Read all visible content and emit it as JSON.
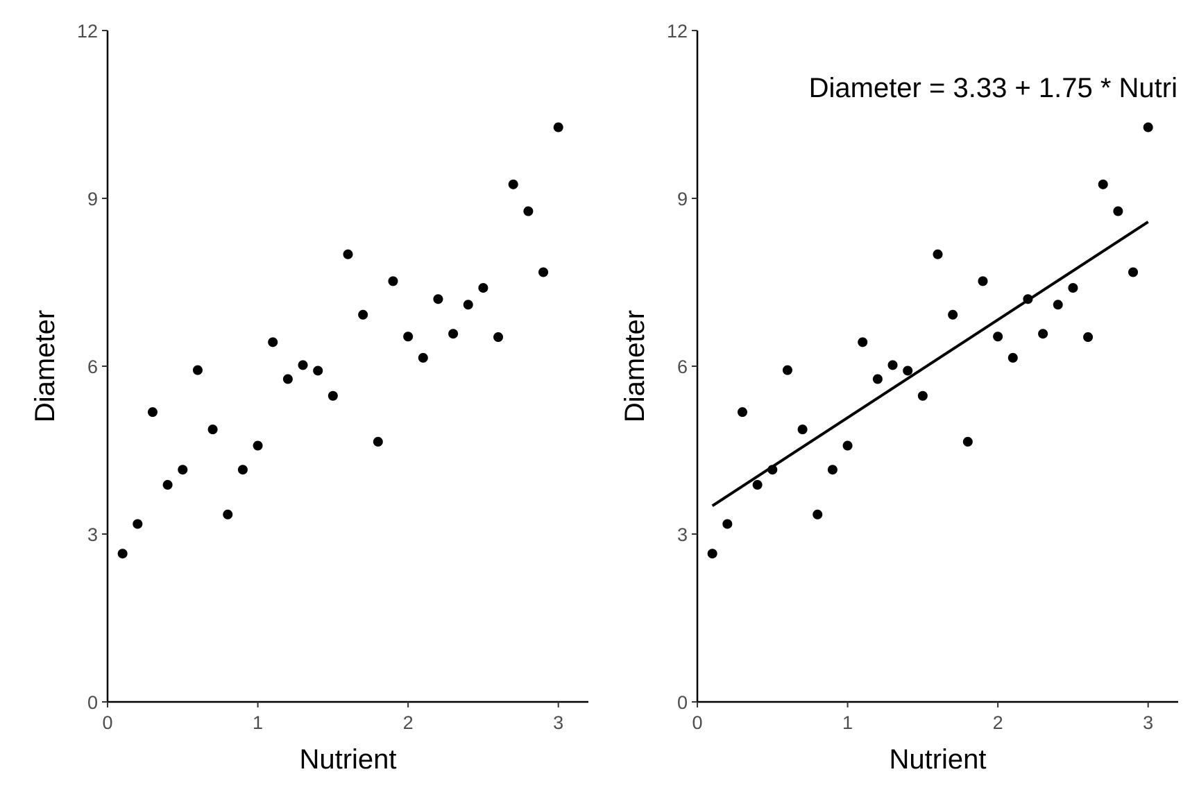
{
  "chart_data": [
    {
      "type": "scatter",
      "xlabel": "Nutrient",
      "ylabel": "Diameter",
      "xlim": [
        0,
        3.2
      ],
      "ylim": [
        0,
        12
      ],
      "xticks": [
        "0",
        "1",
        "2",
        "3"
      ],
      "yticks": [
        "0",
        "3",
        "6",
        "9",
        "12"
      ],
      "grid": false,
      "series": [
        {
          "x": [
            0.1,
            0.2,
            0.3,
            0.4,
            0.5,
            0.6,
            0.7,
            0.8,
            0.9,
            1.0,
            1.1,
            1.2,
            1.3,
            1.4,
            1.5,
            1.6,
            1.7,
            1.8,
            1.9,
            2.0,
            2.1,
            2.2,
            2.3,
            2.4,
            2.5,
            2.6,
            2.7,
            2.8,
            2.9,
            3.0
          ],
          "y": [
            2.65,
            3.18,
            5.18,
            3.88,
            4.15,
            5.93,
            4.87,
            3.35,
            4.15,
            4.58,
            6.43,
            5.77,
            6.02,
            5.92,
            5.47,
            8.0,
            6.92,
            4.65,
            7.52,
            6.53,
            6.15,
            7.2,
            6.58,
            7.1,
            7.4,
            6.52,
            9.25,
            8.77,
            7.68,
            10.27
          ]
        }
      ]
    },
    {
      "type": "scatter",
      "xlabel": "Nutrient",
      "ylabel": "Diameter",
      "xlim": [
        0,
        3.2
      ],
      "ylim": [
        0,
        12
      ],
      "xticks": [
        "0",
        "1",
        "2",
        "3"
      ],
      "yticks": [
        "0",
        "3",
        "6",
        "9",
        "12"
      ],
      "grid": false,
      "annotation": "Diameter = 3.33 + 1.75 * Nutri",
      "fit_line": {
        "intercept": 3.33,
        "slope": 1.75,
        "x_range": [
          0.1,
          3.0
        ]
      },
      "series": [
        {
          "x": [
            0.1,
            0.2,
            0.3,
            0.4,
            0.5,
            0.6,
            0.7,
            0.8,
            0.9,
            1.0,
            1.1,
            1.2,
            1.3,
            1.4,
            1.5,
            1.6,
            1.7,
            1.8,
            1.9,
            2.0,
            2.1,
            2.2,
            2.3,
            2.4,
            2.5,
            2.6,
            2.7,
            2.8,
            2.9,
            3.0
          ],
          "y": [
            2.65,
            3.18,
            5.18,
            3.88,
            4.15,
            5.93,
            4.87,
            3.35,
            4.15,
            4.58,
            6.43,
            5.77,
            6.02,
            5.92,
            5.47,
            8.0,
            6.92,
            4.65,
            7.52,
            6.53,
            6.15,
            7.2,
            6.58,
            7.1,
            7.4,
            6.52,
            9.25,
            8.77,
            7.68,
            10.27
          ]
        }
      ]
    }
  ]
}
